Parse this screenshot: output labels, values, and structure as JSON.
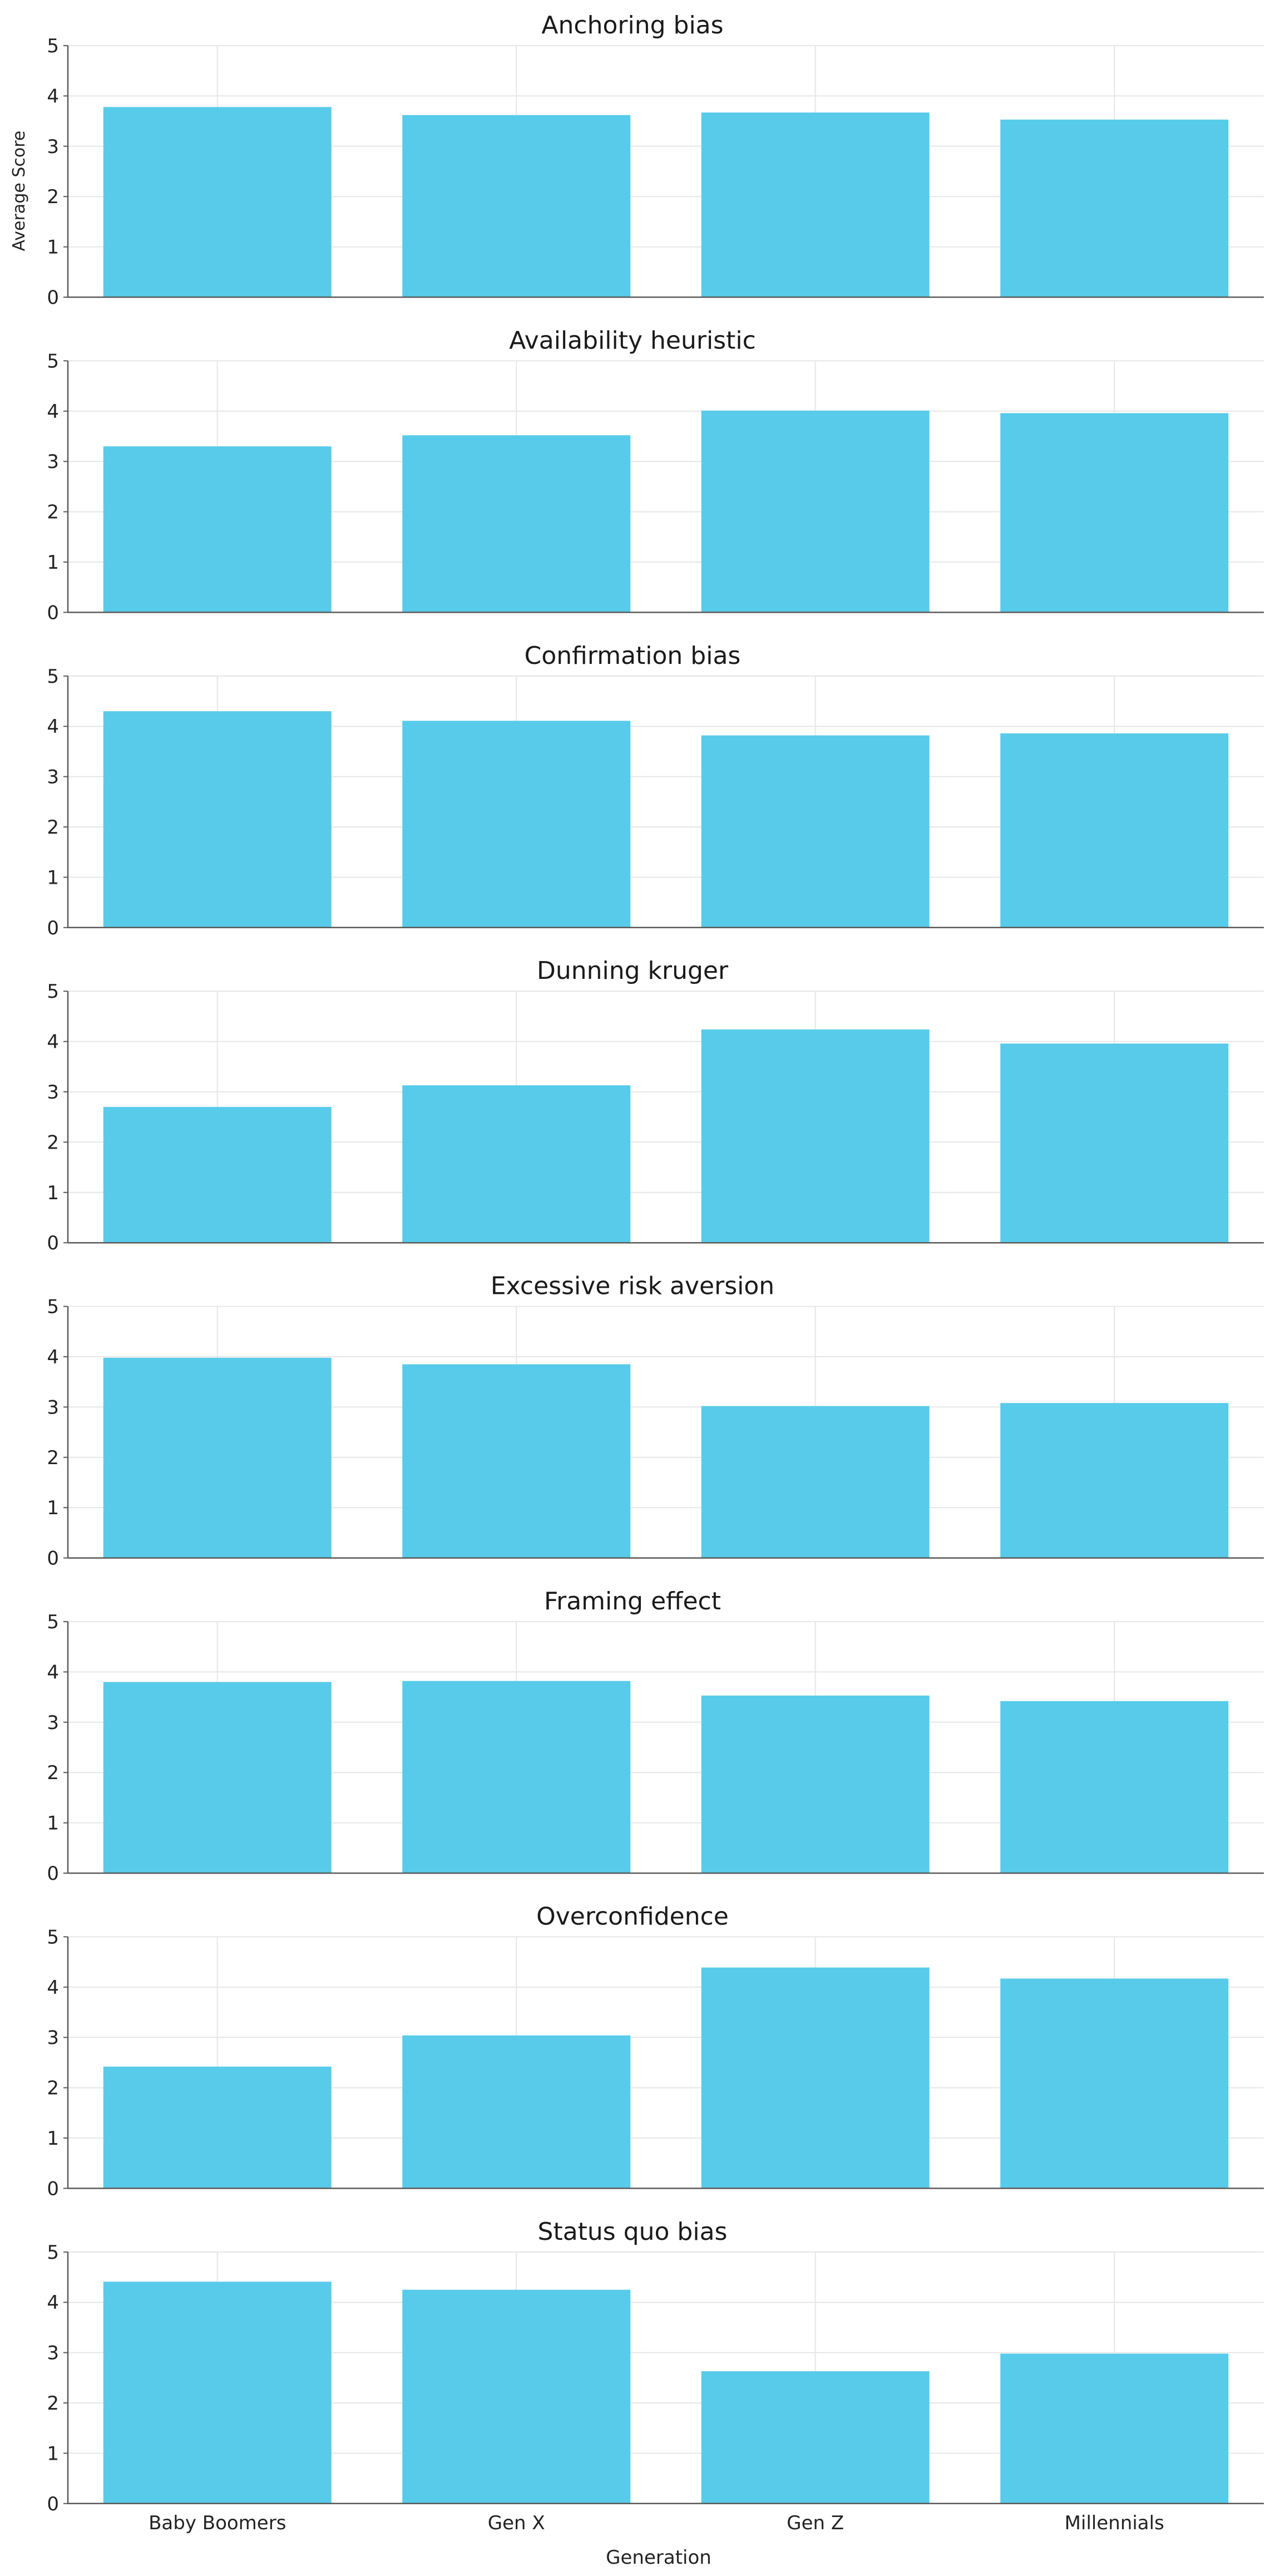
{
  "colors": {
    "bar": "#58CBEA",
    "grid": "#e6e6e6",
    "axis": "#5a5a5a",
    "text": "#222222"
  },
  "figure": {
    "ylabel": "Average Score",
    "xlabel": "Generation"
  },
  "chart_data": [
    {
      "type": "bar",
      "title": "Anchoring bias",
      "categories": [
        "Baby Boomers",
        "Gen X",
        "Gen Z",
        "Millennials"
      ],
      "values": [
        3.78,
        3.62,
        3.67,
        3.53
      ],
      "ylim": [
        0,
        5
      ],
      "yticks": [
        0,
        1,
        2,
        3,
        4,
        5
      ],
      "grid": true,
      "ylabel": "Average Score",
      "xlabel": ""
    },
    {
      "type": "bar",
      "title": "Availability heuristic",
      "categories": [
        "Baby Boomers",
        "Gen X",
        "Gen Z",
        "Millennials"
      ],
      "values": [
        3.3,
        3.52,
        4.01,
        3.96
      ],
      "ylim": [
        0,
        5
      ],
      "yticks": [
        0,
        1,
        2,
        3,
        4,
        5
      ],
      "grid": true,
      "ylabel": "",
      "xlabel": ""
    },
    {
      "type": "bar",
      "title": "Confirmation bias",
      "categories": [
        "Baby Boomers",
        "Gen X",
        "Gen Z",
        "Millennials"
      ],
      "values": [
        4.3,
        4.11,
        3.82,
        3.86
      ],
      "ylim": [
        0,
        5
      ],
      "yticks": [
        0,
        1,
        2,
        3,
        4,
        5
      ],
      "grid": true,
      "ylabel": "",
      "xlabel": ""
    },
    {
      "type": "bar",
      "title": "Dunning kruger",
      "categories": [
        "Baby Boomers",
        "Gen X",
        "Gen Z",
        "Millennials"
      ],
      "values": [
        2.7,
        3.13,
        4.24,
        3.96
      ],
      "ylim": [
        0,
        5
      ],
      "yticks": [
        0,
        1,
        2,
        3,
        4,
        5
      ],
      "grid": true,
      "ylabel": "",
      "xlabel": ""
    },
    {
      "type": "bar",
      "title": "Excessive risk aversion",
      "categories": [
        "Baby Boomers",
        "Gen X",
        "Gen Z",
        "Millennials"
      ],
      "values": [
        3.98,
        3.85,
        3.02,
        3.08
      ],
      "ylim": [
        0,
        5
      ],
      "yticks": [
        0,
        1,
        2,
        3,
        4,
        5
      ],
      "grid": true,
      "ylabel": "",
      "xlabel": ""
    },
    {
      "type": "bar",
      "title": "Framing effect",
      "categories": [
        "Baby Boomers",
        "Gen X",
        "Gen Z",
        "Millennials"
      ],
      "values": [
        3.8,
        3.82,
        3.53,
        3.42
      ],
      "ylim": [
        0,
        5
      ],
      "yticks": [
        0,
        1,
        2,
        3,
        4,
        5
      ],
      "grid": true,
      "ylabel": "",
      "xlabel": ""
    },
    {
      "type": "bar",
      "title": "Overconfidence",
      "categories": [
        "Baby Boomers",
        "Gen X",
        "Gen Z",
        "Millennials"
      ],
      "values": [
        2.42,
        3.04,
        4.39,
        4.17
      ],
      "ylim": [
        0,
        5
      ],
      "yticks": [
        0,
        1,
        2,
        3,
        4,
        5
      ],
      "grid": true,
      "ylabel": "",
      "xlabel": ""
    },
    {
      "type": "bar",
      "title": "Status quo bias",
      "categories": [
        "Baby Boomers",
        "Gen X",
        "Gen Z",
        "Millennials"
      ],
      "values": [
        4.41,
        4.25,
        2.63,
        2.98
      ],
      "ylim": [
        0,
        5
      ],
      "yticks": [
        0,
        1,
        2,
        3,
        4,
        5
      ],
      "grid": true,
      "ylabel": "",
      "xlabel": "Generation",
      "show_x_tick_labels": true
    }
  ]
}
